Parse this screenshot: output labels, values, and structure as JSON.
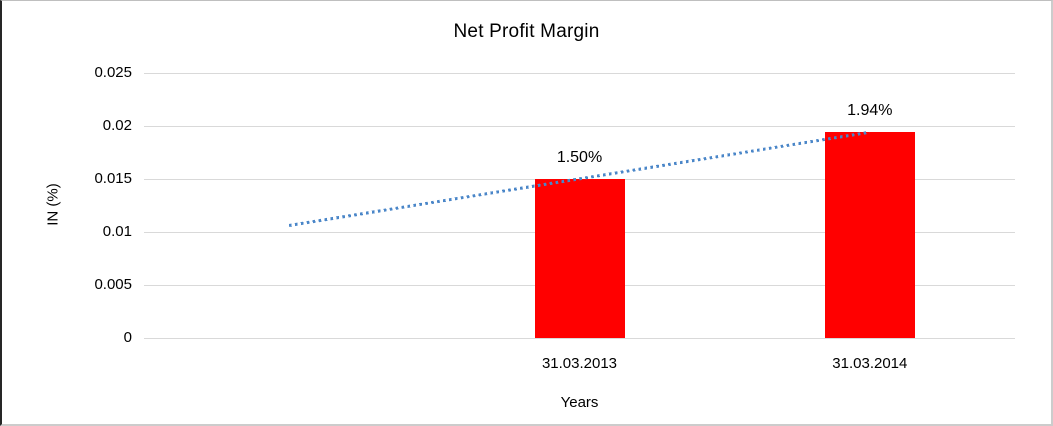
{
  "chart_data": {
    "type": "bar",
    "title": "Net Profit Margin",
    "xlabel": "Years",
    "ylabel": "IN (%)",
    "categories": [
      "",
      "31.03.2013",
      "31.03.2014"
    ],
    "values": [
      null,
      0.015,
      0.0194
    ],
    "data_labels": [
      "",
      "1.50%",
      "1.94%"
    ],
    "ylim": [
      0,
      0.025
    ],
    "yticks": [
      0,
      0.005,
      0.01,
      0.015,
      0.02,
      0.025
    ],
    "ytick_labels": [
      "0",
      "0.005",
      "0.01",
      "0.015",
      "0.02",
      "0.025"
    ],
    "grid": true,
    "legend": "none",
    "bar_color": "#ff0000",
    "gridline_color": "#d9d9d9",
    "trendline": {
      "style": "dotted",
      "color": "#4a86c8",
      "slot_indices": [
        0,
        2
      ],
      "y_values": [
        0.0106,
        0.0194
      ]
    }
  }
}
